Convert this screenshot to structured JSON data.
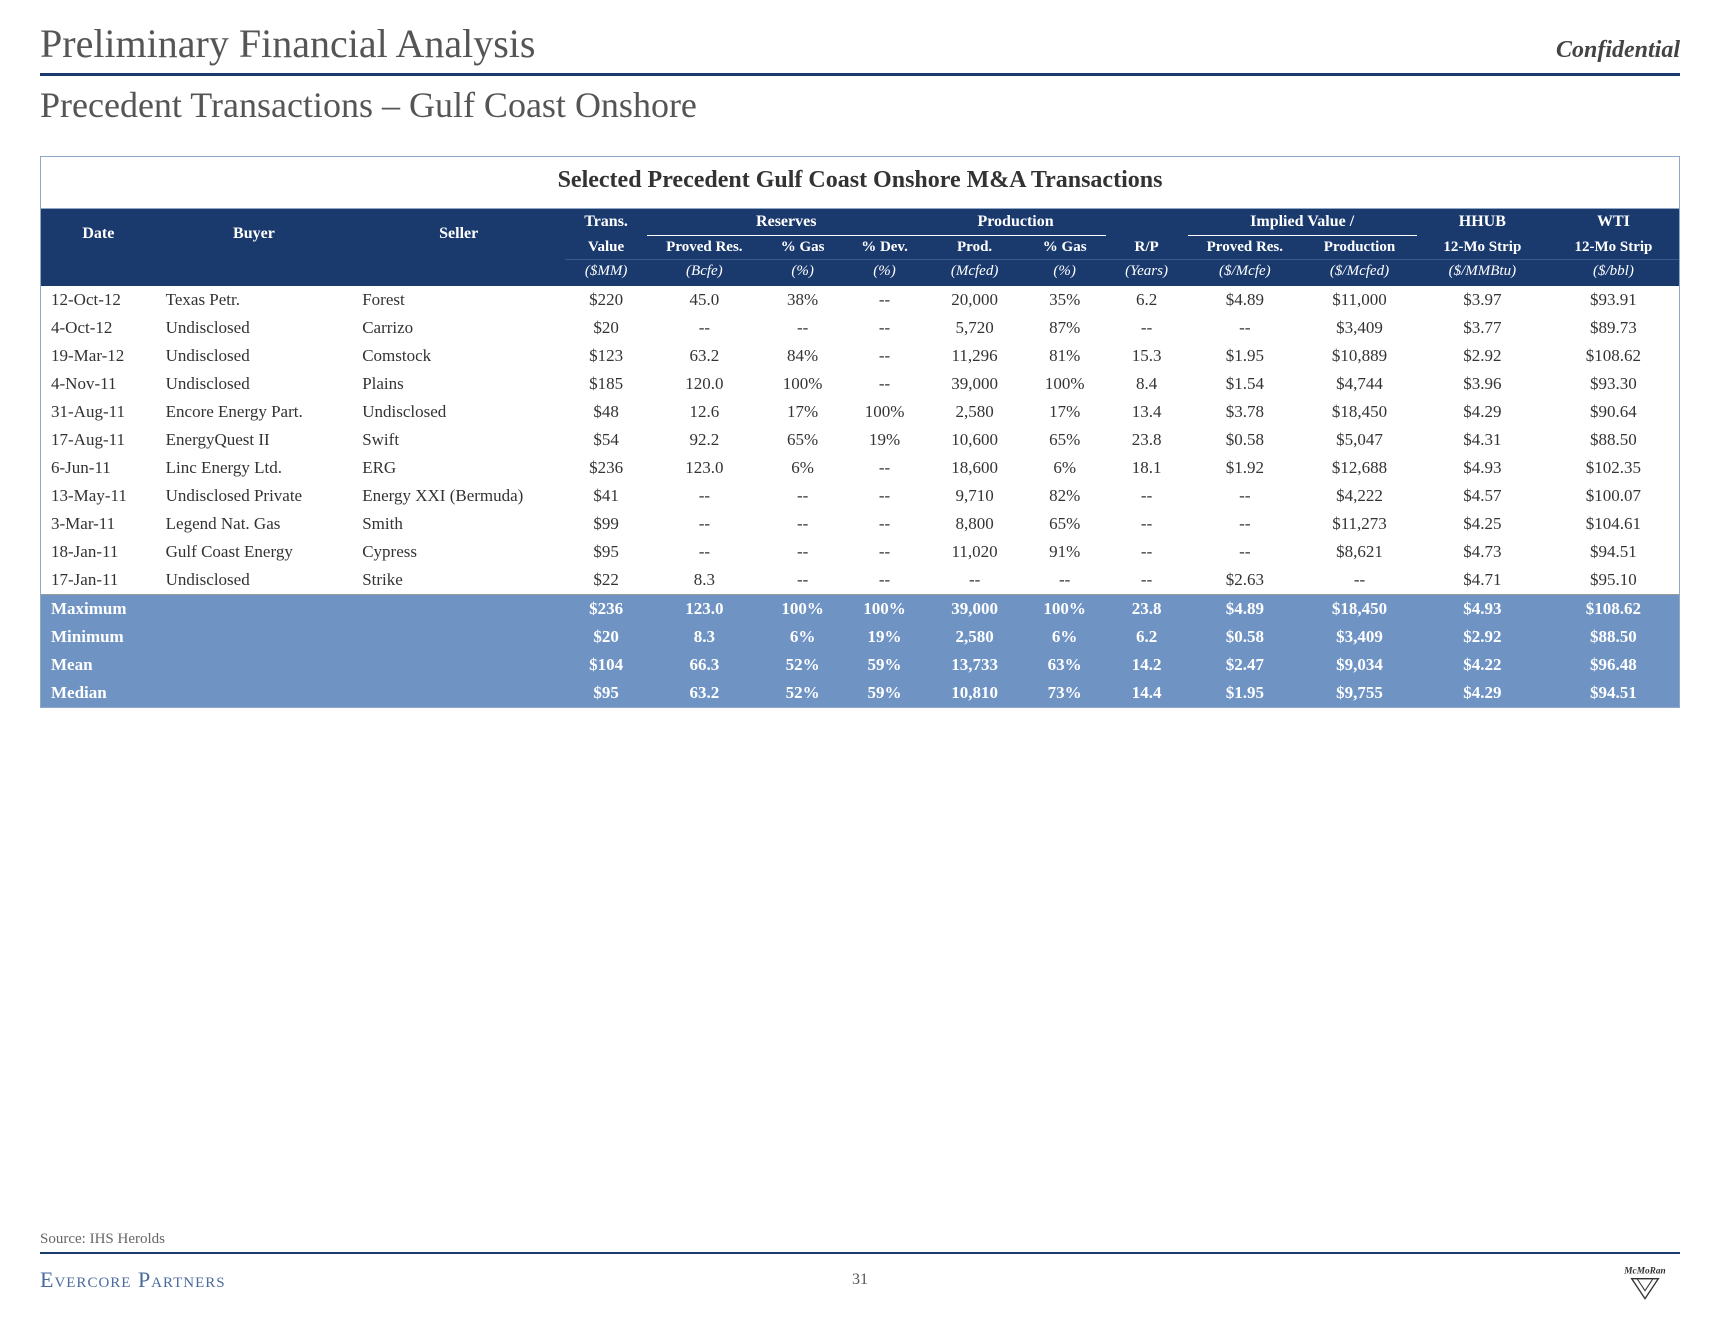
{
  "header": {
    "title": "Preliminary Financial Analysis",
    "confidential": "Confidential",
    "subtitle": "Precedent Transactions – Gulf Coast Onshore"
  },
  "table": {
    "title": "Selected Precedent Gulf Coast Onshore M&A Transactions",
    "group_headers": {
      "trans": "Trans.",
      "reserves": "Reserves",
      "production": "Production",
      "implied": "Implied Value /",
      "hhub": "HHUB",
      "wti": "WTI"
    },
    "columns": {
      "date": "Date",
      "buyer": "Buyer",
      "seller": "Seller",
      "value": "Value",
      "proved_res": "Proved Res.",
      "pct_gas_r": "% Gas",
      "pct_dev": "% Dev.",
      "prod": "Prod.",
      "pct_gas_p": "% Gas",
      "rp": "R/P",
      "iv_proved": "Proved Res.",
      "iv_prod": "Production",
      "strip12_h": "12-Mo Strip",
      "strip12_w": "12-Mo Strip"
    },
    "units": {
      "value": "($MM)",
      "proved_res": "(Bcfe)",
      "pct_gas_r": "(%)",
      "pct_dev": "(%)",
      "prod": "(Mcfed)",
      "pct_gas_p": "(%)",
      "rp": "(Years)",
      "iv_proved": "($/Mcfe)",
      "iv_prod": "($/Mcfed)",
      "strip12_h": "($/MMBtu)",
      "strip12_w": "($/bbl)"
    },
    "rows": [
      {
        "date": "12-Oct-12",
        "buyer": "Texas Petr.",
        "seller": "Forest",
        "value": "$220",
        "proved": "45.0",
        "gasr": "38%",
        "dev": "--",
        "prod": "20,000",
        "gasp": "35%",
        "rp": "6.2",
        "ivp": "$4.89",
        "ivpr": "$11,000",
        "hh": "$3.97",
        "wti": "$93.91"
      },
      {
        "date": "4-Oct-12",
        "buyer": "Undisclosed",
        "seller": "Carrizo",
        "value": "$20",
        "proved": "--",
        "gasr": "--",
        "dev": "--",
        "prod": "5,720",
        "gasp": "87%",
        "rp": "--",
        "ivp": "--",
        "ivpr": "$3,409",
        "hh": "$3.77",
        "wti": "$89.73"
      },
      {
        "date": "19-Mar-12",
        "buyer": "Undisclosed",
        "seller": "Comstock",
        "value": "$123",
        "proved": "63.2",
        "gasr": "84%",
        "dev": "--",
        "prod": "11,296",
        "gasp": "81%",
        "rp": "15.3",
        "ivp": "$1.95",
        "ivpr": "$10,889",
        "hh": "$2.92",
        "wti": "$108.62"
      },
      {
        "date": "4-Nov-11",
        "buyer": "Undisclosed",
        "seller": "Plains",
        "value": "$185",
        "proved": "120.0",
        "gasr": "100%",
        "dev": "--",
        "prod": "39,000",
        "gasp": "100%",
        "rp": "8.4",
        "ivp": "$1.54",
        "ivpr": "$4,744",
        "hh": "$3.96",
        "wti": "$93.30"
      },
      {
        "date": "31-Aug-11",
        "buyer": "Encore Energy Part.",
        "seller": "Undisclosed",
        "value": "$48",
        "proved": "12.6",
        "gasr": "17%",
        "dev": "100%",
        "prod": "2,580",
        "gasp": "17%",
        "rp": "13.4",
        "ivp": "$3.78",
        "ivpr": "$18,450",
        "hh": "$4.29",
        "wti": "$90.64"
      },
      {
        "date": "17-Aug-11",
        "buyer": "EnergyQuest II",
        "seller": "Swift",
        "value": "$54",
        "proved": "92.2",
        "gasr": "65%",
        "dev": "19%",
        "prod": "10,600",
        "gasp": "65%",
        "rp": "23.8",
        "ivp": "$0.58",
        "ivpr": "$5,047",
        "hh": "$4.31",
        "wti": "$88.50"
      },
      {
        "date": "6-Jun-11",
        "buyer": "Linc Energy Ltd.",
        "seller": "ERG",
        "value": "$236",
        "proved": "123.0",
        "gasr": "6%",
        "dev": "--",
        "prod": "18,600",
        "gasp": "6%",
        "rp": "18.1",
        "ivp": "$1.92",
        "ivpr": "$12,688",
        "hh": "$4.93",
        "wti": "$102.35"
      },
      {
        "date": "13-May-11",
        "buyer": "Undisclosed Private",
        "seller": "Energy XXI (Bermuda)",
        "value": "$41",
        "proved": "--",
        "gasr": "--",
        "dev": "--",
        "prod": "9,710",
        "gasp": "82%",
        "rp": "--",
        "ivp": "--",
        "ivpr": "$4,222",
        "hh": "$4.57",
        "wti": "$100.07"
      },
      {
        "date": "3-Mar-11",
        "buyer": "Legend Nat. Gas",
        "seller": "Smith",
        "value": "$99",
        "proved": "--",
        "gasr": "--",
        "dev": "--",
        "prod": "8,800",
        "gasp": "65%",
        "rp": "--",
        "ivp": "--",
        "ivpr": "$11,273",
        "hh": "$4.25",
        "wti": "$104.61"
      },
      {
        "date": "18-Jan-11",
        "buyer": "Gulf Coast Energy",
        "seller": "Cypress",
        "value": "$95",
        "proved": "--",
        "gasr": "--",
        "dev": "--",
        "prod": "11,020",
        "gasp": "91%",
        "rp": "--",
        "ivp": "--",
        "ivpr": "$8,621",
        "hh": "$4.73",
        "wti": "$94.51"
      },
      {
        "date": "17-Jan-11",
        "buyer": "Undisclosed",
        "seller": "Strike",
        "value": "$22",
        "proved": "8.3",
        "gasr": "--",
        "dev": "--",
        "prod": "--",
        "gasp": "--",
        "rp": "--",
        "ivp": "$2.63",
        "ivpr": "--",
        "hh": "$4.71",
        "wti": "$95.10"
      }
    ],
    "summary": [
      {
        "label": "Maximum",
        "value": "$236",
        "proved": "123.0",
        "gasr": "100%",
        "dev": "100%",
        "prod": "39,000",
        "gasp": "100%",
        "rp": "23.8",
        "ivp": "$4.89",
        "ivpr": "$18,450",
        "hh": "$4.93",
        "wti": "$108.62"
      },
      {
        "label": "Minimum",
        "value": "$20",
        "proved": "8.3",
        "gasr": "6%",
        "dev": "19%",
        "prod": "2,580",
        "gasp": "6%",
        "rp": "6.2",
        "ivp": "$0.58",
        "ivpr": "$3,409",
        "hh": "$2.92",
        "wti": "$88.50"
      },
      {
        "label": "Mean",
        "value": "$104",
        "proved": "66.3",
        "gasr": "52%",
        "dev": "59%",
        "prod": "13,733",
        "gasp": "63%",
        "rp": "14.2",
        "ivp": "$2.47",
        "ivpr": "$9,034",
        "hh": "$4.22",
        "wti": "$96.48"
      },
      {
        "label": "Median",
        "value": "$95",
        "proved": "63.2",
        "gasr": "52%",
        "dev": "59%",
        "prod": "10,810",
        "gasp": "73%",
        "rp": "14.4",
        "ivp": "$1.95",
        "ivpr": "$9,755",
        "hh": "$4.29",
        "wti": "$94.51"
      }
    ]
  },
  "footer": {
    "source": "Source: IHS Herolds",
    "brand": "Evercore Partners",
    "page": "31",
    "logo_text": "McMoRan"
  },
  "colors": {
    "header_bg": "#1a3a6e",
    "summary_bg": "#6f94c4",
    "rule": "#1a3a6e"
  }
}
